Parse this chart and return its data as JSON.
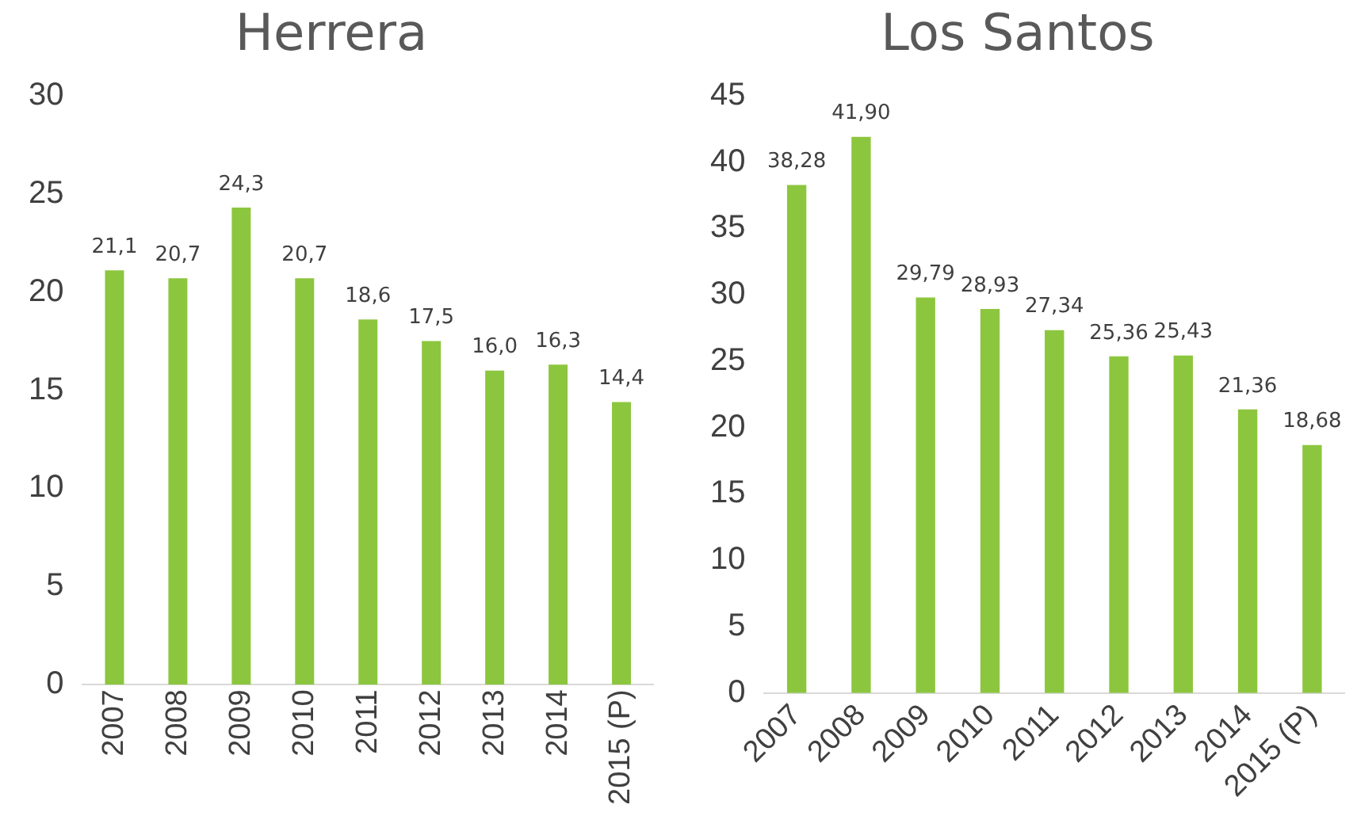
{
  "chart_data": [
    {
      "type": "bar",
      "title": "Herrera",
      "categories": [
        "2007",
        "2008",
        "2009",
        "2010",
        "2011",
        "2012",
        "2013",
        "2014",
        "2015 (P)"
      ],
      "values": [
        21.1,
        20.7,
        24.3,
        20.7,
        18.6,
        17.5,
        16.0,
        16.3,
        14.4
      ],
      "value_labels": [
        "21,1",
        "20,7",
        "24,3",
        "20,7",
        "18,6",
        "17,5",
        "16,0",
        "16,3",
        "14,4"
      ],
      "color": "#8cc63e",
      "ylim": [
        0,
        30
      ],
      "yticks": [
        0,
        5,
        10,
        15,
        20,
        25,
        30
      ]
    },
    {
      "type": "bar",
      "title": "Los Santos",
      "categories": [
        "2007",
        "2008",
        "2009",
        "2010",
        "2011",
        "2012",
        "2013",
        "2014",
        "2015 (P)"
      ],
      "values": [
        38.28,
        41.9,
        29.79,
        28.93,
        27.34,
        25.36,
        25.43,
        21.36,
        18.68
      ],
      "value_labels": [
        "38,28",
        "41,90",
        "29,79",
        "28,93",
        "27,34",
        "25,36",
        "25,43",
        "21,36",
        "18,68"
      ],
      "color": "#8cc63e",
      "ylim": [
        0,
        45
      ],
      "yticks": [
        0,
        5,
        10,
        15,
        20,
        25,
        30,
        35,
        40,
        45
      ]
    }
  ]
}
